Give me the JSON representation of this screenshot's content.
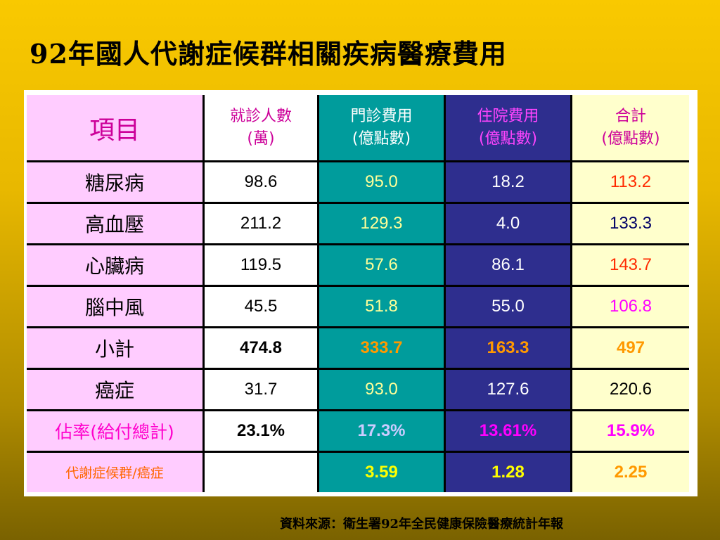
{
  "title": "92年國人代謝症候群相關疾病醫療費用",
  "source": "資料來源：衛生署92年全民健康保險醫療統計年報",
  "headers": [
    {
      "line1": "項目",
      "line2": ""
    },
    {
      "line1": "就診人數",
      "line2": "(萬)"
    },
    {
      "line1": "門診費用",
      "line2": "(億點數)"
    },
    {
      "line1": "住院費用",
      "line2": "(億點數)"
    },
    {
      "line1": "合計",
      "line2": "(億點數)"
    }
  ],
  "rows": [
    {
      "label": "糖尿病",
      "values": [
        "98.6",
        "95.0",
        "18.2",
        "113.2"
      ]
    },
    {
      "label": "高血壓",
      "values": [
        "211.2",
        "129.3",
        "4.0",
        "133.3"
      ]
    },
    {
      "label": "心臟病",
      "values": [
        "119.5",
        "57.6",
        "86.1",
        "143.7"
      ]
    },
    {
      "label": "腦中風",
      "values": [
        "45.5",
        "51.8",
        "55.0",
        "106.8"
      ]
    },
    {
      "label": "小計",
      "values": [
        "474.8",
        "333.7",
        "163.3",
        "497"
      ]
    },
    {
      "label": "癌症",
      "values": [
        "31.7",
        "93.0",
        "127.6",
        "220.6"
      ]
    },
    {
      "label": "佔率(給付總計)",
      "values": [
        "23.1%",
        "17.3%",
        "13.61%",
        "15.9%"
      ]
    },
    {
      "label": "代謝症候群/癌症",
      "values": [
        "",
        "3.59",
        "1.28",
        "2.25"
      ]
    }
  ],
  "colors": {
    "background": "#f9c900",
    "label_col": "#ffccff",
    "patients_col": "#ffffff",
    "outpatient_col": "#009c9c",
    "inpatient_col": "#2e2e8e",
    "total_col": "#ffffcc"
  }
}
